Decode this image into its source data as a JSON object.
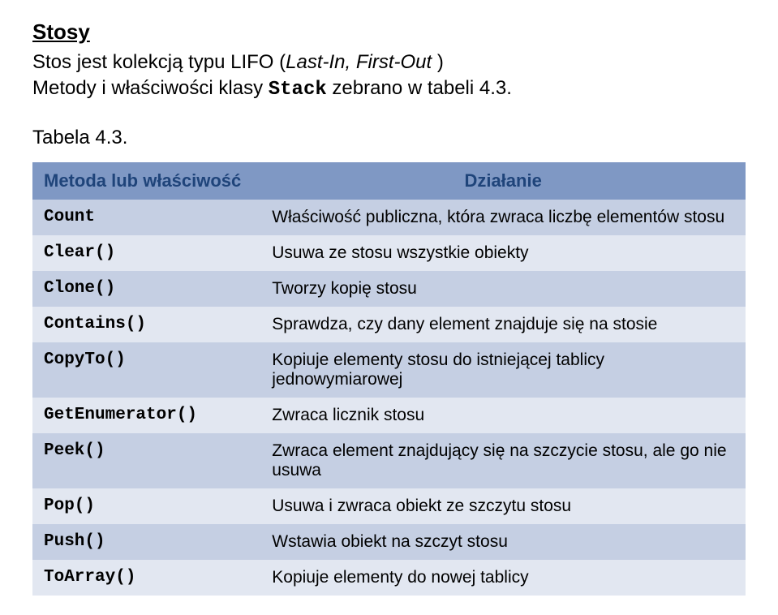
{
  "title": "Stosy",
  "description_parts": {
    "p1": "Stos jest kolekcją typu LIFO (",
    "p2": "Last-In, First-Out",
    "p3": " )",
    "p4": "Metody i właściwości klasy ",
    "p5": "Stack",
    "p6": " zebrano w tabeli 4.3."
  },
  "caption": "Tabela 4.3.",
  "table": {
    "headers": [
      "Metoda lub właściwość",
      "Działanie"
    ],
    "rows": [
      [
        "Count",
        "Właściwość publiczna, która zwraca liczbę elementów stosu"
      ],
      [
        "Clear()",
        "Usuwa ze stosu wszystkie obiekty"
      ],
      [
        "Clone()",
        "Tworzy kopię stosu"
      ],
      [
        "Contains()",
        "Sprawdza, czy dany element znajduje się na stosie"
      ],
      [
        "CopyTo()",
        "Kopiuje elementy stosu do istniejącej tablicy jednowymiarowej"
      ],
      [
        "GetEnumerator()",
        "Zwraca licznik stosu"
      ],
      [
        "Peek()",
        "Zwraca element znajdujący się na szczycie stosu, ale go nie usuwa"
      ],
      [
        "Pop()",
        "Usuwa i zwraca obiekt ze szczytu stosu"
      ],
      [
        "Push()",
        "Wstawia obiekt na szczyt stosu"
      ],
      [
        "ToArray()",
        "Kopiuje elementy do nowej tablicy"
      ]
    ],
    "colors": {
      "header_bg": "#7f98c4",
      "odd_bg": "#c5cfe3",
      "even_bg": "#e2e7f1",
      "header_text": "#1f447a"
    }
  }
}
